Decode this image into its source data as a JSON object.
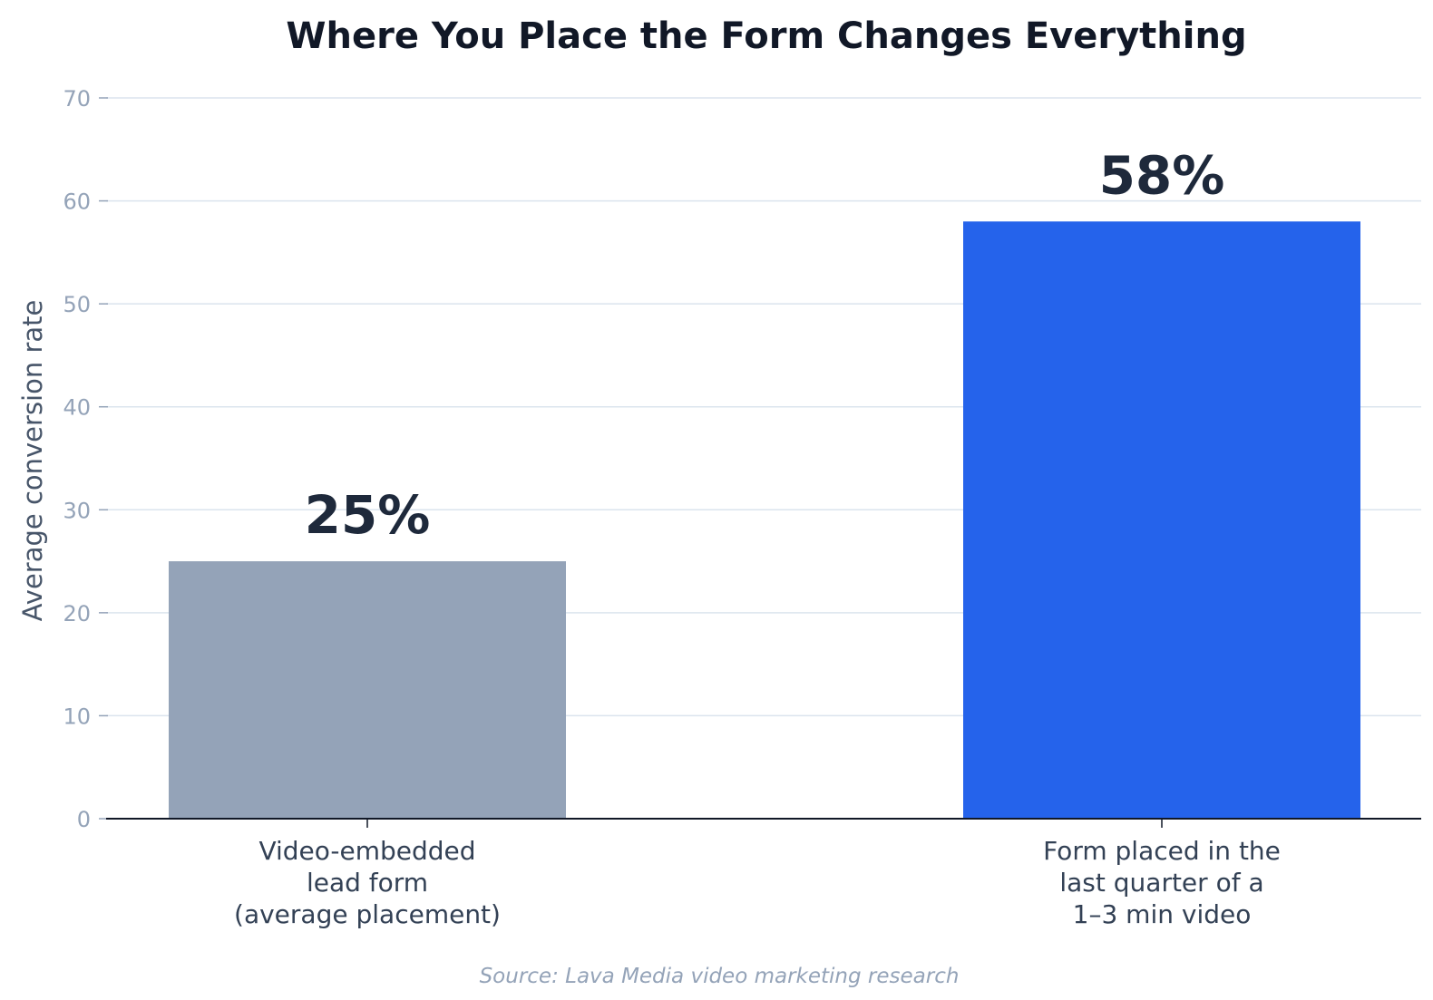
{
  "chart_data": {
    "type": "bar",
    "title": "Where You Place the Form Changes Everything",
    "ylabel": "Average conversion rate",
    "xlabel": "",
    "ylim": [
      0,
      70
    ],
    "yticks": [
      0,
      10,
      20,
      30,
      40,
      50,
      60,
      70
    ],
    "grid": true,
    "categories": [
      [
        "Video-embedded",
        "lead form",
        "(average placement)"
      ],
      [
        "Form placed in the",
        "last quarter of a",
        "1–3 min video"
      ]
    ],
    "values": [
      25,
      58
    ],
    "data_labels": [
      "25%",
      "58%"
    ],
    "colors": [
      "#94a3b8",
      "#2563eb"
    ],
    "source": "Source: Lava Media video marketing research"
  }
}
